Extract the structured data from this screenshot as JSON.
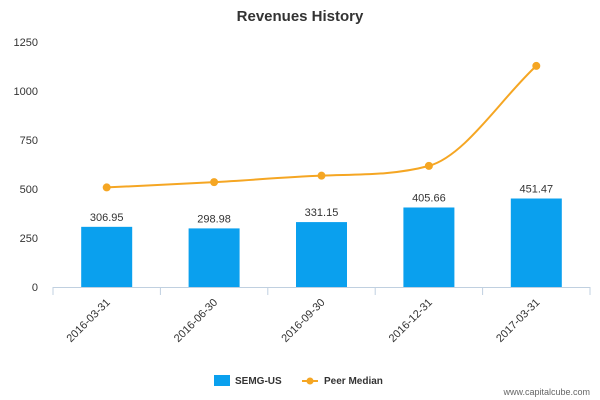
{
  "chart_data": {
    "type": "bar",
    "title": "Revenues History",
    "categories": [
      "2016-03-31",
      "2016-06-30",
      "2016-09-30",
      "2016-12-31",
      "2017-03-31"
    ],
    "ylim": [
      0,
      1250
    ],
    "yticks": [
      0,
      250,
      500,
      750,
      1000,
      1250
    ],
    "grid": false,
    "legend_position": "bottom",
    "series": [
      {
        "name": "SEMG-US",
        "type": "bar",
        "color": "#0aa0ee",
        "values": [
          306.95,
          298.98,
          331.15,
          405.66,
          451.47
        ],
        "labels": [
          "306.95",
          "298.98",
          "331.15",
          "405.66",
          "451.47"
        ]
      },
      {
        "name": "Peer Median",
        "type": "line",
        "color": "#f5a623",
        "values": [
          508,
          535,
          568,
          618,
          1128
        ]
      }
    ]
  },
  "credit": "www.capitalcube.com"
}
